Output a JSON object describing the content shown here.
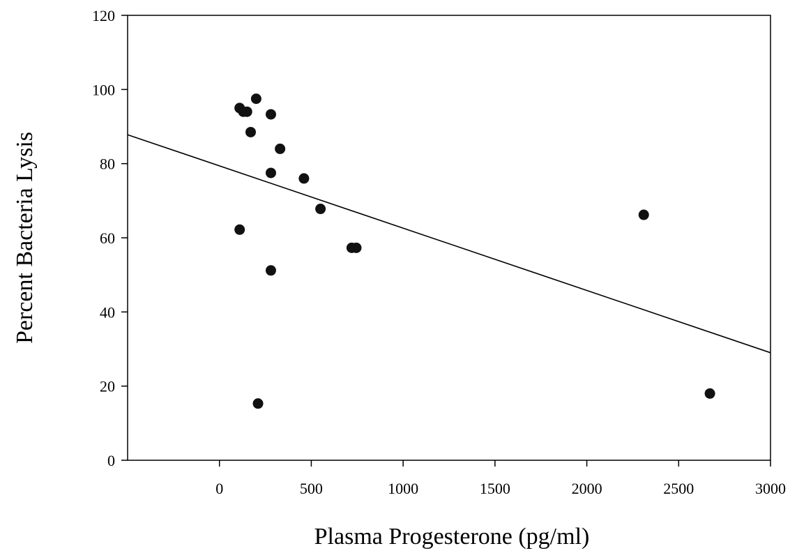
{
  "chart_data": {
    "type": "scatter",
    "xlabel": "Plasma Progesterone (pg/ml)",
    "ylabel": "Percent Bacteria Lysis",
    "xlim": [
      -500,
      3000
    ],
    "ylim": [
      0,
      120
    ],
    "x_ticks": [
      0,
      500,
      1000,
      1500,
      2000,
      2500,
      3000
    ],
    "y_ticks": [
      0,
      20,
      40,
      60,
      80,
      100,
      120
    ],
    "grid": false,
    "legend": "none",
    "series": [
      {
        "points": [
          {
            "x": 110,
            "y": 95
          },
          {
            "x": 130,
            "y": 94
          },
          {
            "x": 150,
            "y": 94
          },
          {
            "x": 170,
            "y": 88.5
          },
          {
            "x": 200,
            "y": 97.5
          },
          {
            "x": 280,
            "y": 93.3
          },
          {
            "x": 330,
            "y": 84
          },
          {
            "x": 280,
            "y": 77.5
          },
          {
            "x": 460,
            "y": 76
          },
          {
            "x": 550,
            "y": 67.8
          },
          {
            "x": 110,
            "y": 62.2
          },
          {
            "x": 720,
            "y": 57.3
          },
          {
            "x": 745,
            "y": 57.3
          },
          {
            "x": 280,
            "y": 51.2
          },
          {
            "x": 210,
            "y": 15.3
          },
          {
            "x": 2310,
            "y": 66.2
          },
          {
            "x": 2670,
            "y": 18
          }
        ]
      }
    ],
    "regression_line": {
      "x": [
        -500,
        3000
      ],
      "y": [
        87.8,
        29
      ]
    },
    "colors": {
      "marker": "#111111",
      "line": "#000000",
      "axis": "#000000"
    }
  }
}
